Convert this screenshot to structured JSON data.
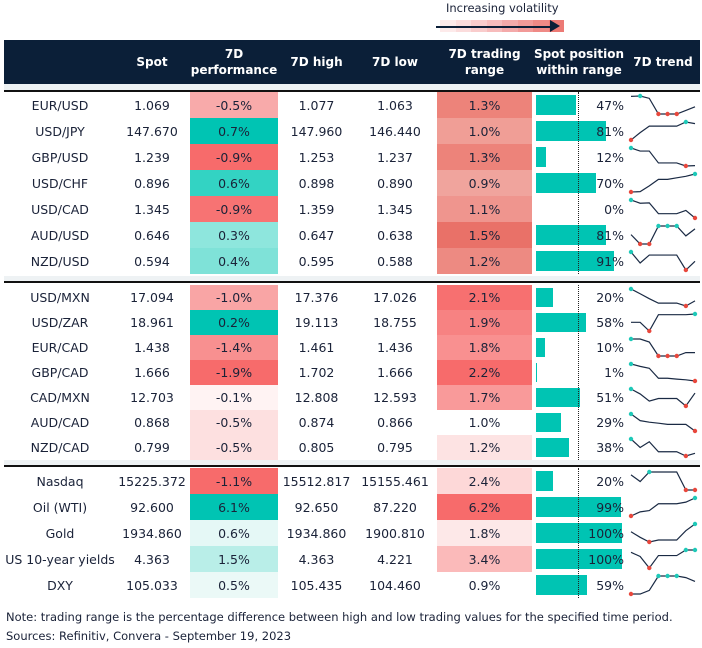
{
  "legend": {
    "label": "Increasing volatility",
    "gradient": [
      "#fdeaea",
      "#fbdcdc",
      "#f9cccc",
      "#f7bcbc",
      "#f4aaaa",
      "#f29a98",
      "#ef8a86",
      "#ec7a75"
    ]
  },
  "header": {
    "spot": "Spot",
    "perf_line1": "7D",
    "perf_line2": "performance",
    "high": "7D high",
    "low": "7D low",
    "range_line1": "7D trading",
    "range_line2": "range",
    "pos_line1": "Spot position",
    "pos_line2": "within range",
    "trend": "7D trend"
  },
  "colors": {
    "header_bg": "#0b1f38",
    "bar": "#00c4b3",
    "high_marker": "#1ec9b8",
    "low_marker": "#e8473c",
    "line": "#1a2a44"
  },
  "groups": [
    {
      "rows": [
        {
          "name": "EUR/USD",
          "spot": "1.069",
          "perf": "-0.5%",
          "perf_color": "#f8aaaa",
          "high": "1.077",
          "low": "1.063",
          "range": "1.3%",
          "range_color": "#ed837a",
          "position": 47,
          "position_label": "47%",
          "trend": [
            0.98,
            1,
            0.87,
            0,
            0,
            0,
            0.2,
            0.4
          ],
          "trend_highs": [
            1
          ],
          "trend_lows": [
            3,
            4,
            5
          ]
        },
        {
          "name": "USD/JPY",
          "spot": "147.670",
          "perf": "0.7%",
          "perf_color": "#00c4b3",
          "high": "147.960",
          "low": "146.440",
          "range": "1.0%",
          "range_color": "#f09e96",
          "position": 81,
          "position_label": "81%",
          "trend": [
            0,
            0.41,
            0.77,
            0.77,
            0.77,
            0.77,
            1,
            0.91
          ],
          "trend_highs": [
            6
          ],
          "trend_lows": [
            0
          ]
        },
        {
          "name": "GBP/USD",
          "spot": "1.239",
          "perf": "-0.9%",
          "perf_color": "#f76b6b",
          "high": "1.253",
          "low": "1.237",
          "range": "1.3%",
          "range_color": "#ed837a",
          "position": 12,
          "position_label": "12%",
          "trend": [
            1,
            0.83,
            0.83,
            0.17,
            0.17,
            0.17,
            0,
            0.02
          ],
          "trend_highs": [
            0
          ],
          "trend_lows": [
            6
          ]
        },
        {
          "name": "USD/CHF",
          "spot": "0.896",
          "perf": "0.6%",
          "perf_color": "#33d3c3",
          "high": "0.898",
          "low": "0.890",
          "range": "0.9%",
          "range_color": "#f0a49d",
          "position": 70,
          "position_label": "70%",
          "trend": [
            0,
            0.02,
            0.34,
            0.7,
            0.7,
            0.79,
            0.87,
            1
          ],
          "trend_highs": [
            7
          ],
          "trend_lows": [
            0
          ]
        },
        {
          "name": "USD/CAD",
          "spot": "1.345",
          "perf": "-0.9%",
          "perf_color": "#f77373",
          "high": "1.359",
          "low": "1.345",
          "range": "1.1%",
          "range_color": "#ef958e",
          "position": 0,
          "position_label": "0%",
          "trend": [
            1,
            0.82,
            0.84,
            0.24,
            0.24,
            0.24,
            0.42,
            0
          ],
          "trend_highs": [
            0
          ],
          "trend_lows": [
            7
          ]
        },
        {
          "name": "AUD/USD",
          "spot": "0.646",
          "perf": "0.3%",
          "perf_color": "#8ee6dd",
          "high": "0.647",
          "low": "0.638",
          "range": "1.5%",
          "range_color": "#e97168",
          "position": 81,
          "position_label": "81%",
          "trend": [
            0.52,
            0,
            0,
            1,
            1,
            1,
            0.45,
            0.84
          ],
          "trend_highs": [
            3,
            4,
            5
          ],
          "trend_lows": [
            1,
            2
          ]
        },
        {
          "name": "NZD/USD",
          "spot": "0.594",
          "perf": "0.4%",
          "perf_color": "#7fe2d8",
          "high": "0.595",
          "low": "0.588",
          "range": "1.2%",
          "range_color": "#ed8a82",
          "position": 91,
          "position_label": "91%",
          "trend": [
            1,
            0.39,
            0.83,
            0.83,
            0.83,
            0.83,
            0,
            0.48
          ],
          "trend_highs": [
            0
          ],
          "trend_lows": [
            6
          ]
        }
      ]
    },
    {
      "rows": [
        {
          "name": "USD/MXN",
          "spot": "17.094",
          "perf": "-1.0%",
          "perf_color": "#f9a5a5",
          "high": "17.376",
          "low": "17.026",
          "range": "2.1%",
          "range_color": "#f77070",
          "position": 20,
          "position_label": "20%",
          "trend": [
            1,
            0.72,
            0.43,
            0.17,
            0.17,
            0.17,
            0,
            0.3
          ],
          "trend_highs": [
            0
          ],
          "trend_lows": [
            6
          ]
        },
        {
          "name": "USD/ZAR",
          "spot": "18.961",
          "perf": "0.2%",
          "perf_color": "#00c4b3",
          "high": "19.113",
          "low": "18.755",
          "range": "1.9%",
          "range_color": "#f78282",
          "position": 58,
          "position_label": "58%",
          "trend": [
            0.51,
            0.51,
            0,
            0.96,
            0.96,
            0.96,
            0.96,
            1
          ],
          "trend_highs": [
            7
          ],
          "trend_lows": [
            2
          ]
        },
        {
          "name": "EUR/CAD",
          "spot": "1.438",
          "perf": "-1.4%",
          "perf_color": "#f89090",
          "high": "1.461",
          "low": "1.436",
          "range": "1.8%",
          "range_color": "#f99090",
          "position": 10,
          "position_label": "10%",
          "trend": [
            1,
            1,
            0.82,
            0,
            0,
            0,
            0.2,
            0.2
          ],
          "trend_highs": [
            0
          ],
          "trend_lows": [
            3,
            4,
            5
          ]
        },
        {
          "name": "GBP/CAD",
          "spot": "1.666",
          "perf": "-1.9%",
          "perf_color": "#f76b6b",
          "high": "1.702",
          "low": "1.666",
          "range": "2.2%",
          "range_color": "#f76b6b",
          "position": 1,
          "position_label": "1%",
          "trend": [
            1,
            0.86,
            0.75,
            0.16,
            0.16,
            0.11,
            0.07,
            0
          ],
          "trend_highs": [
            0
          ],
          "trend_lows": [
            7
          ]
        },
        {
          "name": "CAD/MXN",
          "spot": "12.703",
          "perf": "-0.1%",
          "perf_color": "#fff3f3",
          "high": "12.808",
          "low": "12.593",
          "range": "1.7%",
          "range_color": "#f99a9a",
          "position": 51,
          "position_label": "51%",
          "trend": [
            1,
            0.71,
            0.29,
            0.44,
            0.44,
            0.44,
            0,
            0.76
          ],
          "trend_highs": [
            0
          ],
          "trend_lows": [
            6
          ]
        },
        {
          "name": "AUD/CAD",
          "spot": "0.868",
          "perf": "-0.5%",
          "perf_color": "#fde0e0",
          "high": "0.874",
          "low": "0.866",
          "range": "1.0%",
          "range_color": "#ffffff",
          "position": 29,
          "position_label": "29%",
          "trend": [
            1,
            0.61,
            0.52,
            0.46,
            0.39,
            0.39,
            0.39,
            0
          ],
          "trend_highs": [
            0
          ],
          "trend_lows": [
            7
          ]
        },
        {
          "name": "NZD/CAD",
          "spot": "0.799",
          "perf": "-0.5%",
          "perf_color": "#fde0e0",
          "high": "0.805",
          "low": "0.795",
          "range": "1.2%",
          "range_color": "#fde3e3",
          "position": 38,
          "position_label": "38%",
          "trend": [
            1,
            0.5,
            0.84,
            0.25,
            0.25,
            0.25,
            0,
            0.16
          ],
          "trend_highs": [
            0
          ],
          "trend_lows": [
            6
          ]
        }
      ]
    },
    {
      "rows": [
        {
          "name": "Nasdaq",
          "spot": "15225.372",
          "perf": "-1.1%",
          "perf_color": "#f76b6b",
          "high": "15512.817",
          "low": "15155.461",
          "range": "2.4%",
          "range_color": "#fdd8d8",
          "position": 20,
          "position_label": "20%",
          "trend": [
            0.84,
            0.47,
            1,
            1,
            1,
            1,
            0,
            0
          ],
          "trend_highs": [
            2
          ],
          "trend_lows": [
            6,
            7
          ]
        },
        {
          "name": "Oil (WTI)",
          "spot": "92.600",
          "perf": "6.1%",
          "perf_color": "#00c4b3",
          "high": "92.650",
          "low": "87.220",
          "range": "6.2%",
          "range_color": "#f76b6b",
          "position": 99,
          "position_label": "99%",
          "trend": [
            0,
            0.23,
            0.3,
            0.68,
            0.68,
            0.68,
            0.77,
            1
          ],
          "trend_highs": [
            7
          ],
          "trend_lows": [
            0
          ]
        },
        {
          "name": "Gold",
          "spot": "1934.860",
          "perf": "0.6%",
          "perf_color": "#e5f8f6",
          "high": "1934.860",
          "low": "1900.810",
          "range": "1.8%",
          "range_color": "#fde8e8",
          "position": 100,
          "position_label": "100%",
          "trend": [
            0.57,
            0.26,
            0,
            0.11,
            0.11,
            0.11,
            0.63,
            1
          ],
          "trend_highs": [
            7
          ],
          "trend_lows": [
            2
          ]
        },
        {
          "name": "US 10-year yields",
          "spot": "4.363",
          "perf": "1.5%",
          "perf_color": "#b9eee8",
          "high": "4.363",
          "low": "4.221",
          "range": "3.4%",
          "range_color": "#fbbaba",
          "position": 100,
          "position_label": "100%",
          "trend": [
            0.87,
            0.64,
            0,
            0.69,
            0.69,
            0.69,
            1,
            1
          ],
          "trend_highs": [
            6,
            7
          ],
          "trend_lows": [
            2
          ]
        },
        {
          "name": "DXY",
          "spot": "105.033",
          "perf": "0.5%",
          "perf_color": "#ebf9f7",
          "high": "105.435",
          "low": "104.460",
          "range": "0.9%",
          "range_color": "#ffffff",
          "position": 59,
          "position_label": "59%",
          "trend": [
            0,
            0,
            0.2,
            1,
            1,
            1,
            0.91,
            0.7
          ],
          "trend_highs": [
            3,
            4,
            5
          ],
          "trend_lows": [
            0
          ]
        }
      ]
    }
  ],
  "footer": {
    "note": "Note: trading range is the percentage difference between high and low trading values for the specified time period.",
    "sources": "Sources: Refinitiv, Convera - September 19, 2023"
  }
}
